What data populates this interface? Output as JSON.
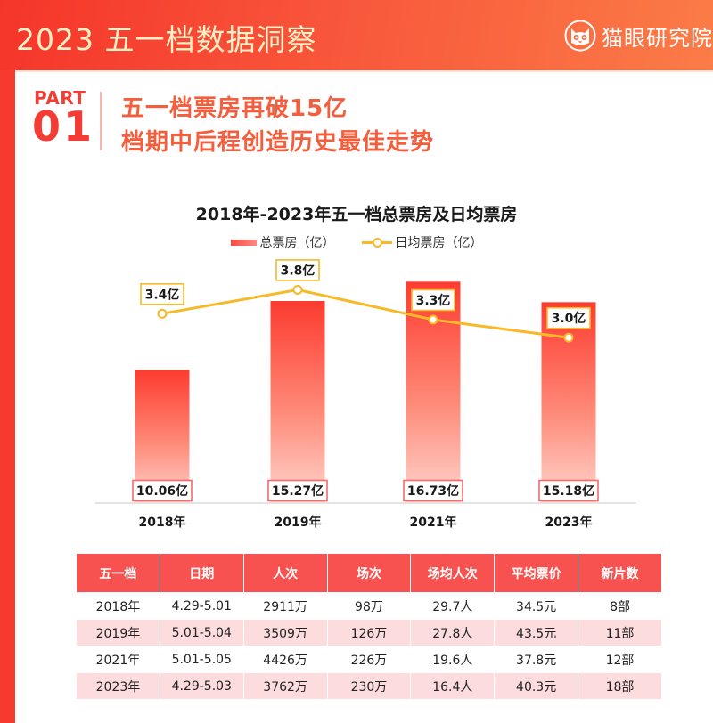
{
  "header": {
    "title": "2023 五一档数据洞察",
    "brand": "猫眼研究院",
    "brand_icon": "cat-face-icon"
  },
  "section": {
    "part_label": "PART",
    "part_number": "01",
    "headline_1": "五一档票房再破15亿",
    "headline_2": "档期中后程创造历史最佳走势"
  },
  "colors": {
    "primary_red": "#f43c34",
    "headline_orange": "#f55e3c",
    "line_yellow": "#f7b928",
    "bar_top": "#fd3d31",
    "bar_bottom": "#ffd1cb",
    "table_header": "#f85250",
    "table_alt_row": "#fcdcdc"
  },
  "chart_data": {
    "type": "bar+line",
    "title": "2018年-2023年五一档总票房及日均票房",
    "categories": [
      "2018年",
      "2019年",
      "2021年",
      "2023年"
    ],
    "series": [
      {
        "name": "总票房（亿）",
        "type": "bar",
        "values": [
          10.06,
          15.27,
          16.73,
          15.18
        ],
        "labels": [
          "10.06亿",
          "15.27亿",
          "16.73亿",
          "15.18亿"
        ]
      },
      {
        "name": "日均票房（亿）",
        "type": "line",
        "values": [
          3.4,
          3.8,
          3.3,
          3.0
        ],
        "labels": [
          "3.4亿",
          "3.8亿",
          "3.3亿",
          "3.0亿"
        ]
      }
    ],
    "xlabel": "",
    "ylabel": "",
    "bar_ylim": [
      0,
      18.5
    ],
    "line_ylim": [
      1.5,
      4.0
    ],
    "grid": false,
    "legend_position": "top-center"
  },
  "table": {
    "headers": [
      "五一档",
      "日期",
      "人次",
      "场次",
      "场均人次",
      "平均票价",
      "新片数"
    ],
    "rows": [
      [
        "2018年",
        "4.29-5.01",
        "2911万",
        "98万",
        "29.7人",
        "34.5元",
        "8部"
      ],
      [
        "2019年",
        "5.01-5.04",
        "3509万",
        "126万",
        "27.8人",
        "43.5元",
        "11部"
      ],
      [
        "2021年",
        "5.01-5.05",
        "4426万",
        "226万",
        "19.6人",
        "37.8元",
        "12部"
      ],
      [
        "2023年",
        "4.29-5.03",
        "3762万",
        "230万",
        "16.4人",
        "40.3元",
        "18部"
      ]
    ]
  }
}
